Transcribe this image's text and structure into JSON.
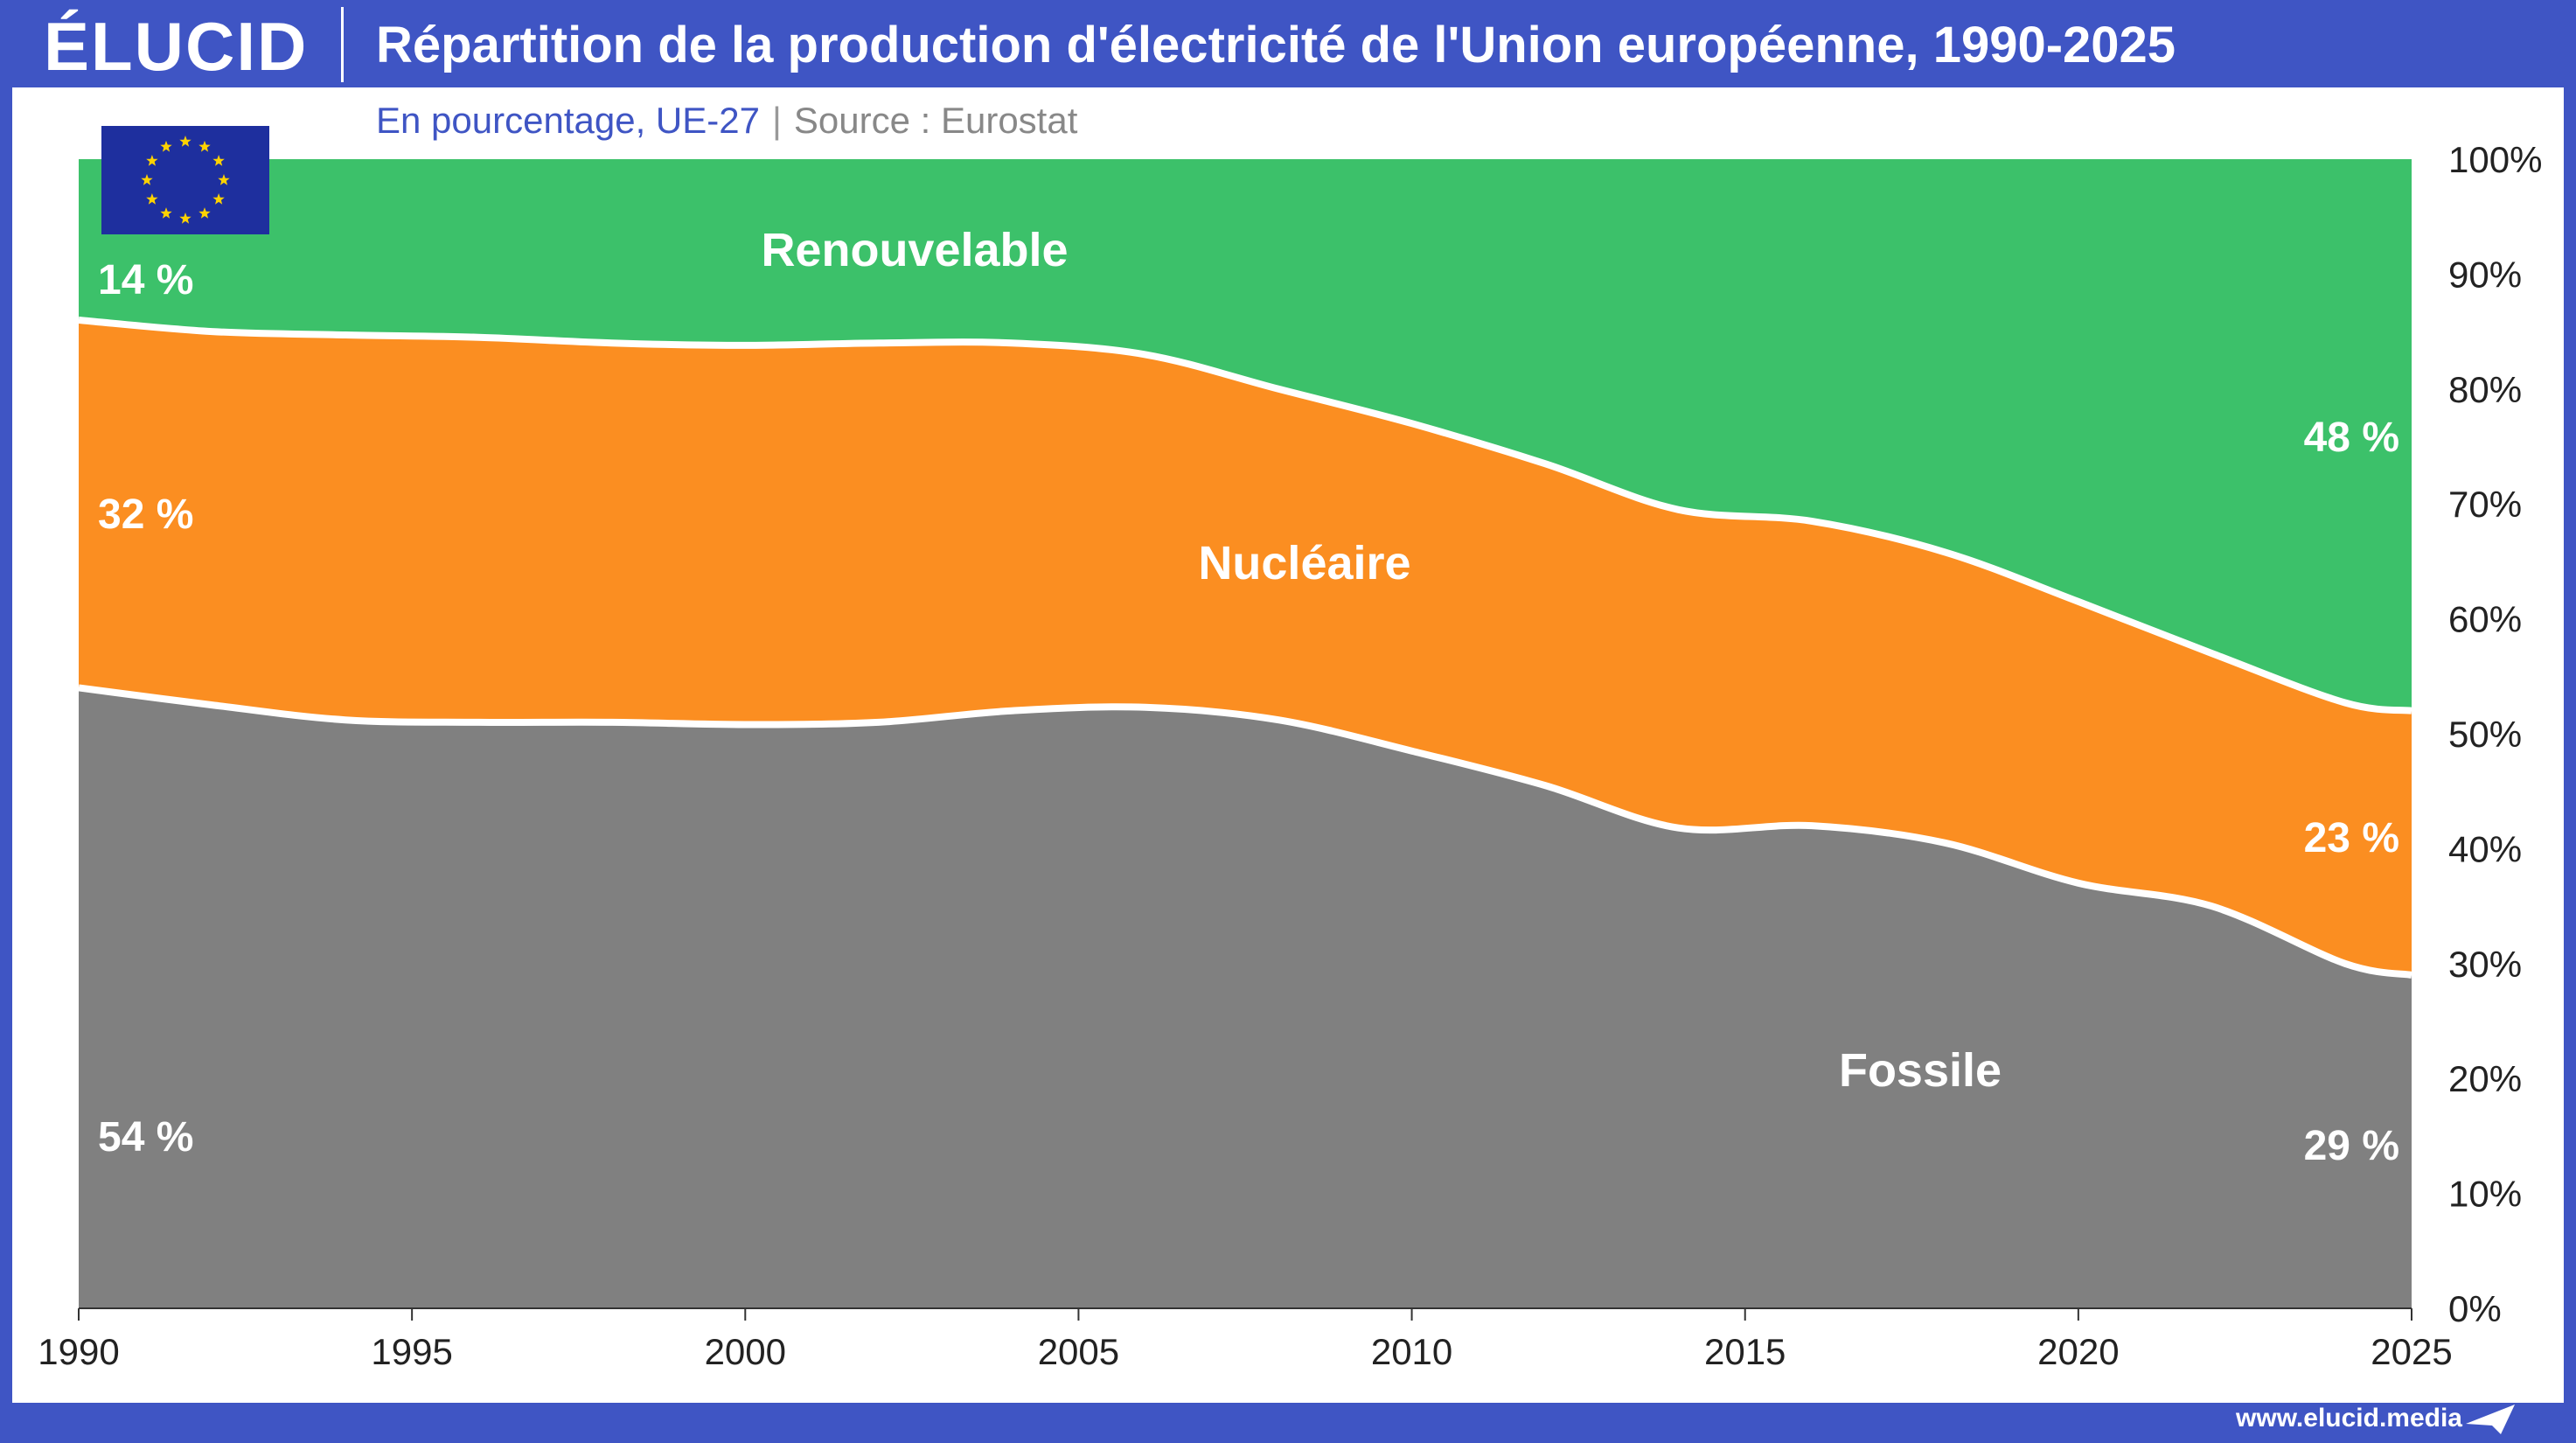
{
  "header": {
    "logo": "ÉLUCID",
    "title": "Répartition de la production d'électricité de l'Union européenne, 1990-2025",
    "subtitle_main": "En pourcentage, UE-27",
    "subtitle_separator": "|",
    "subtitle_source": "Source : Eurostat"
  },
  "footer": {
    "url": "www.elucid.media"
  },
  "colors": {
    "fossile": "#808080",
    "nucleaire": "#fb8e21",
    "renouvelable": "#3cc16a",
    "brand": "#3f55c4",
    "flag": "#1e2f9e",
    "star": "#ffd200"
  },
  "chart_data": {
    "type": "area",
    "stacked": true,
    "normalized_percent": true,
    "x": [
      1990,
      1992,
      1994,
      1996,
      1998,
      2000,
      2002,
      2004,
      2006,
      2008,
      2010,
      2012,
      2014,
      2016,
      2018,
      2020,
      2022,
      2024,
      2025
    ],
    "series": [
      {
        "name": "Fossile",
        "values": [
          54,
          52.5,
          51.2,
          51,
          51,
          50.8,
          51,
          52,
          52.3,
          51.2,
          48.5,
          45.5,
          41.8,
          42,
          40.5,
          37,
          35,
          30,
          29
        ]
      },
      {
        "name": "Nucléaire",
        "values": [
          32,
          32.5,
          33.5,
          33.5,
          33,
          33,
          33,
          32,
          30.7,
          28.8,
          28.5,
          28,
          27.7,
          26.5,
          25.3,
          24.5,
          22,
          22.7,
          23
        ]
      },
      {
        "name": "Renouvelable",
        "values": [
          14,
          15,
          15.3,
          15.5,
          16,
          16.2,
          16,
          16,
          17,
          20,
          23,
          26.5,
          30.5,
          31.5,
          34.2,
          38.5,
          43,
          47.3,
          48
        ]
      }
    ],
    "start_labels": [
      "54 %",
      "32 %",
      "14 %"
    ],
    "end_labels": [
      "29 %",
      "23 %",
      "48 %"
    ],
    "series_labels": [
      "Fossile",
      "Nucléaire",
      "Renouvelable"
    ],
    "x_ticks": [
      1990,
      1995,
      2000,
      2005,
      2010,
      2015,
      2020,
      2025
    ],
    "x_tick_labels": [
      "1990",
      "1995",
      "2000",
      "2005",
      "2010",
      "2015",
      "2020",
      "2025"
    ],
    "y_ticks": [
      0,
      10,
      20,
      30,
      40,
      50,
      60,
      70,
      80,
      90,
      100
    ],
    "y_tick_labels": [
      "0%",
      "10%",
      "20%",
      "30%",
      "40%",
      "50%",
      "60%",
      "70%",
      "80%",
      "90%",
      "100%"
    ],
    "xlim": [
      1990,
      2025
    ],
    "ylim": [
      0,
      100
    ],
    "y_axis_side": "right",
    "grid": false,
    "legend": "none"
  }
}
